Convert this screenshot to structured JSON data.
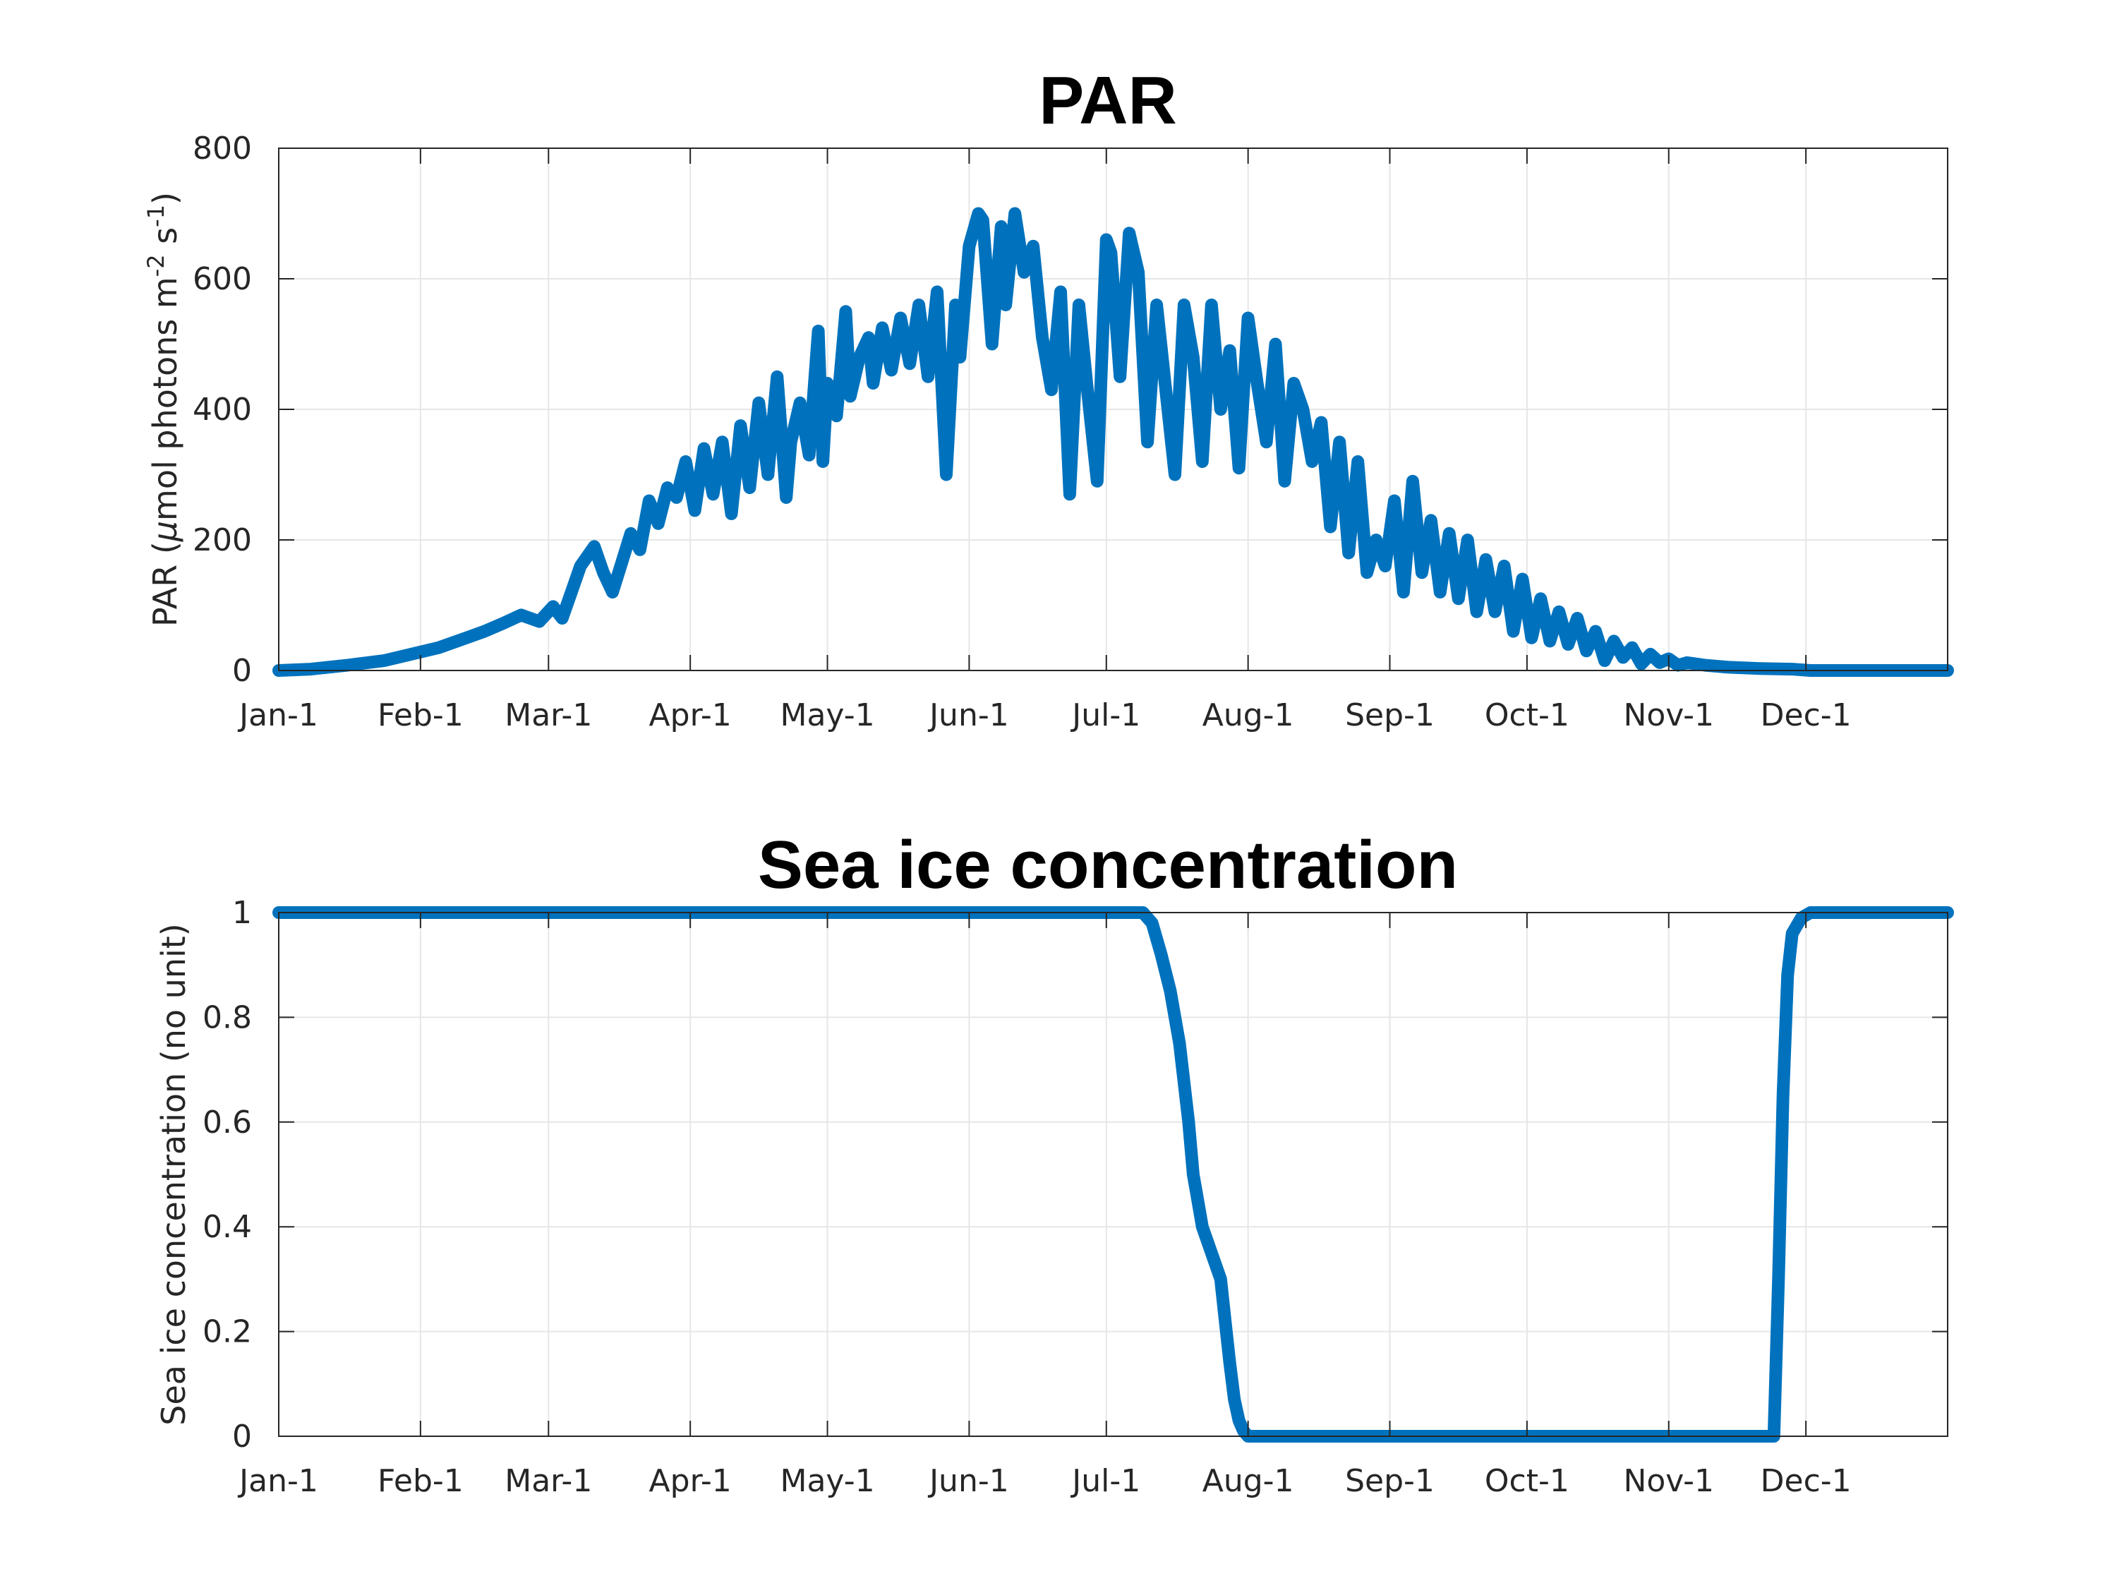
{
  "chart_data": [
    {
      "type": "line",
      "title": "PAR",
      "xlabel": "",
      "ylabel_parts": [
        "PAR (",
        "μ",
        "mol photons m",
        "-2",
        " s",
        "-1",
        ")"
      ],
      "xlim": [
        1,
        366
      ],
      "ylim": [
        0,
        800
      ],
      "yticks": [
        0,
        200,
        400,
        600,
        800
      ],
      "xticks": [
        1,
        32,
        60,
        91,
        121,
        152,
        182,
        213,
        244,
        274,
        305,
        335
      ],
      "xticklabels": [
        "Jan-1",
        "Feb-1",
        "Mar-1",
        "Apr-1",
        "May-1",
        "Jun-1",
        "Jul-1",
        "Aug-1",
        "Sep-1",
        "Oct-1",
        "Nov-1",
        "Dec-1"
      ],
      "grid": true,
      "color": "#0072BD",
      "series": [
        {
          "x": [
            1,
            8,
            16,
            24,
            30,
            36,
            42,
            46,
            50,
            54,
            58,
            61,
            63,
            65,
            67,
            70,
            72,
            74,
            76,
            78,
            80,
            82,
            84,
            86,
            88,
            90,
            92,
            94,
            96,
            98,
            100,
            102,
            104,
            106,
            108,
            110,
            112,
            113,
            115,
            117,
            119,
            120,
            121,
            123,
            125,
            126,
            128,
            130,
            131,
            133,
            135,
            137,
            139,
            141,
            143,
            145,
            147,
            149,
            150,
            152,
            154,
            155,
            157,
            159,
            160,
            162,
            164,
            166,
            168,
            170,
            172,
            174,
            176,
            178,
            180,
            182,
            183,
            185,
            187,
            189,
            191,
            193,
            195,
            197,
            199,
            201,
            203,
            205,
            207,
            209,
            211,
            213,
            215,
            217,
            219,
            221,
            223,
            225,
            227,
            229,
            231,
            233,
            235,
            237,
            239,
            241,
            243,
            245,
            247,
            249,
            251,
            253,
            255,
            257,
            259,
            261,
            263,
            265,
            267,
            269,
            271,
            273,
            275,
            277,
            279,
            281,
            283,
            285,
            287,
            289,
            291,
            293,
            295,
            297,
            299,
            301,
            303,
            305,
            307,
            309,
            313,
            318,
            325,
            332,
            336,
            345,
            355,
            366
          ],
          "y": [
            0,
            2,
            8,
            15,
            25,
            35,
            50,
            60,
            72,
            85,
            75,
            98,
            80,
            120,
            160,
            190,
            150,
            120,
            165,
            210,
            185,
            260,
            225,
            280,
            265,
            320,
            245,
            340,
            270,
            350,
            240,
            375,
            280,
            410,
            300,
            450,
            265,
            350,
            410,
            330,
            520,
            320,
            440,
            390,
            550,
            420,
            480,
            510,
            440,
            525,
            460,
            540,
            470,
            560,
            450,
            580,
            300,
            560,
            480,
            650,
            700,
            690,
            500,
            680,
            560,
            700,
            610,
            650,
            510,
            430,
            580,
            270,
            560,
            420,
            290,
            660,
            640,
            450,
            670,
            610,
            350,
            560,
            430,
            300,
            560,
            480,
            320,
            560,
            400,
            490,
            310,
            540,
            440,
            350,
            500,
            290,
            440,
            400,
            320,
            380,
            220,
            350,
            180,
            320,
            150,
            200,
            160,
            260,
            120,
            290,
            150,
            230,
            120,
            210,
            110,
            200,
            90,
            170,
            90,
            160,
            60,
            140,
            50,
            110,
            45,
            90,
            40,
            80,
            30,
            60,
            15,
            45,
            20,
            35,
            10,
            25,
            12,
            18,
            8,
            12,
            8,
            5,
            3,
            2,
            0,
            0,
            0,
            0
          ]
        }
      ]
    },
    {
      "type": "line",
      "title": "Sea ice concentration",
      "xlabel": "",
      "ylabel": "Sea ice concentration (no unit)",
      "xlim": [
        1,
        366
      ],
      "ylim": [
        0,
        1
      ],
      "yticks": [
        0,
        0.2,
        0.4,
        0.6,
        0.8,
        1
      ],
      "yticklabels": [
        "0",
        "0.2",
        "0.4",
        "0.6",
        "0.8",
        "1"
      ],
      "xticks": [
        1,
        32,
        60,
        91,
        121,
        152,
        182,
        213,
        244,
        274,
        305,
        335
      ],
      "xticklabels": [
        "Jan-1",
        "Feb-1",
        "Mar-1",
        "Apr-1",
        "May-1",
        "Jun-1",
        "Jul-1",
        "Aug-1",
        "Sep-1",
        "Oct-1",
        "Nov-1",
        "Dec-1"
      ],
      "grid": true,
      "color": "#0072BD",
      "series": [
        {
          "x": [
            1,
            190,
            192,
            194,
            196,
            198,
            200,
            201,
            202,
            203,
            205,
            207,
            208,
            209,
            210,
            211,
            212,
            213,
            214,
            215,
            250,
            300,
            328,
            329,
            330,
            331,
            332,
            334,
            336,
            338,
            366
          ],
          "y": [
            1,
            1,
            0.98,
            0.92,
            0.85,
            0.75,
            0.6,
            0.5,
            0.45,
            0.4,
            0.35,
            0.3,
            0.22,
            0.14,
            0.07,
            0.03,
            0.01,
            0,
            0,
            0,
            0,
            0,
            0,
            0.3,
            0.65,
            0.88,
            0.96,
            0.99,
            1,
            1,
            1
          ]
        }
      ]
    }
  ]
}
